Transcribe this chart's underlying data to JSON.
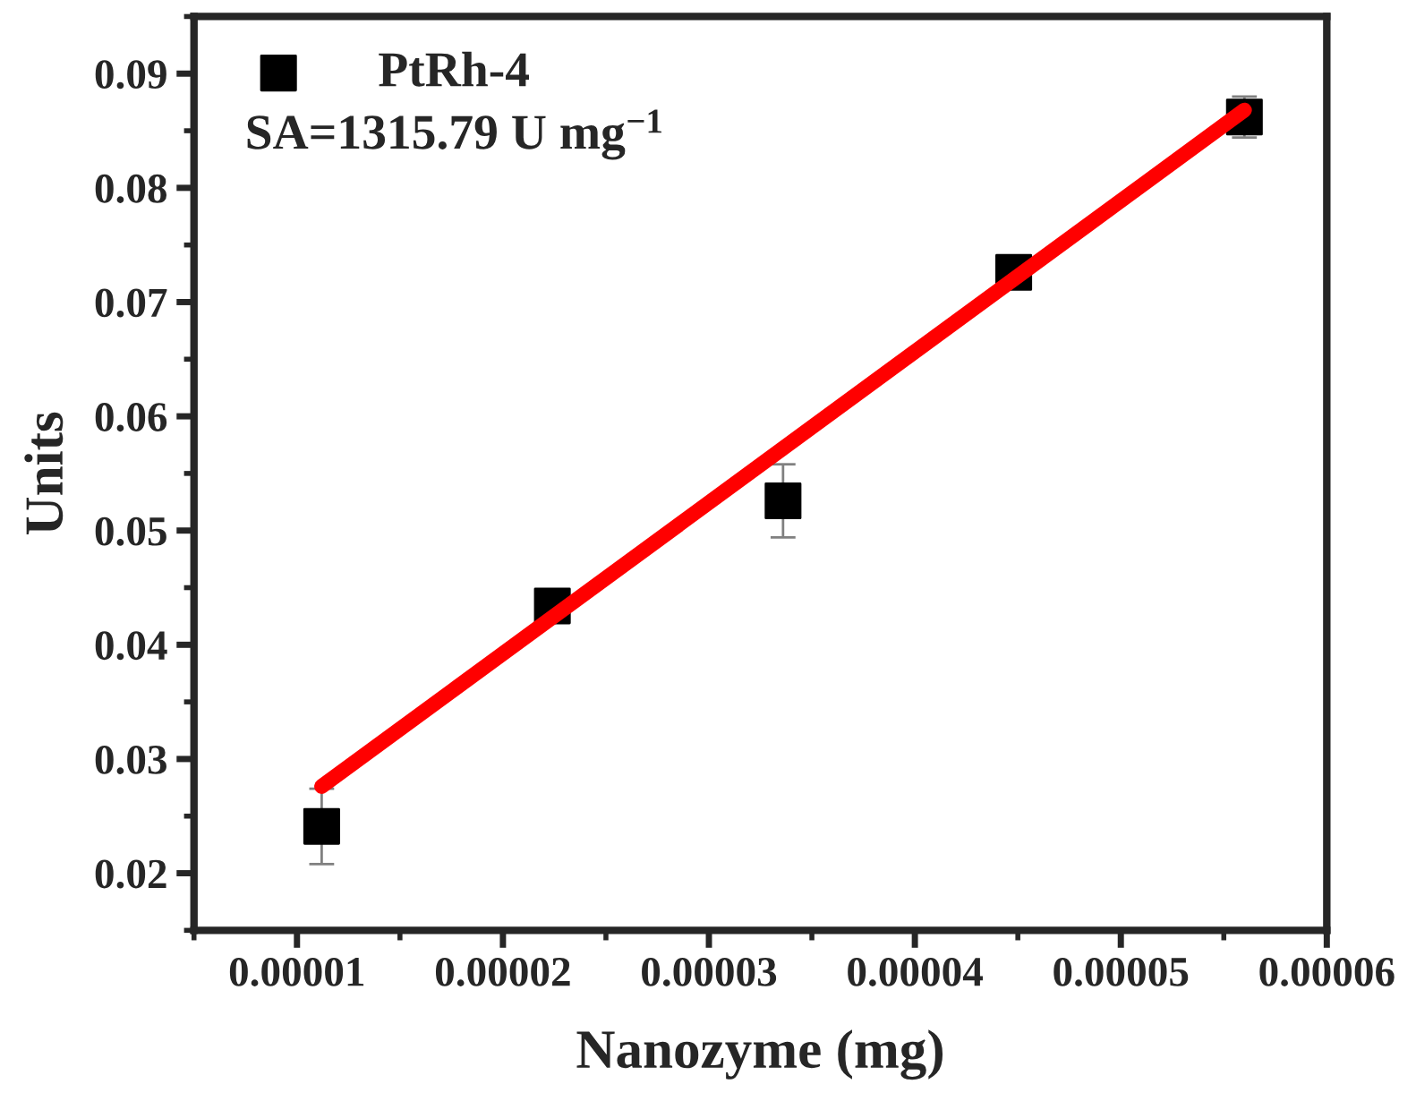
{
  "chart_data": {
    "type": "scatter",
    "xlabel": "Nanozyme (mg)",
    "ylabel": "Units",
    "xlim": [
      5e-06,
      6e-05
    ],
    "xticks": [
      {
        "value": 1e-05,
        "label": "0.00001"
      },
      {
        "value": 2e-05,
        "label": "0.00002"
      },
      {
        "value": 3e-05,
        "label": "0.00003"
      },
      {
        "value": 4e-05,
        "label": "0.00004"
      },
      {
        "value": 5e-05,
        "label": "0.00005"
      },
      {
        "value": 6e-05,
        "label": "0.00006"
      }
    ],
    "ylim": [
      0.015,
      0.095
    ],
    "yticks": [
      0.02,
      0.03,
      0.04,
      0.05,
      0.06,
      0.07,
      0.08,
      0.09
    ],
    "grid": false,
    "legend": "top left",
    "annotations": [
      "SA=1315.79 U mg$^{−1}$"
    ],
    "series": [
      {
        "name": "PtRh-4",
        "marker": "square",
        "color": "#000000",
        "x": [
          1.12e-05,
          2.24e-05,
          3.36e-05,
          4.48e-05,
          5.6e-05
        ],
        "values": [
          0.0241,
          0.0434,
          0.0526,
          0.0726,
          0.0862
        ],
        "errors": [
          0.0033,
          null,
          0.0032,
          null,
          0.0018
        ]
      },
      {
        "type": "line",
        "color": "#ff0000",
        "x": [
          1.12e-05,
          5.6e-05
        ],
        "values": [
          0.0276,
          0.0868
        ],
        "line_style": "solid"
      }
    ]
  }
}
